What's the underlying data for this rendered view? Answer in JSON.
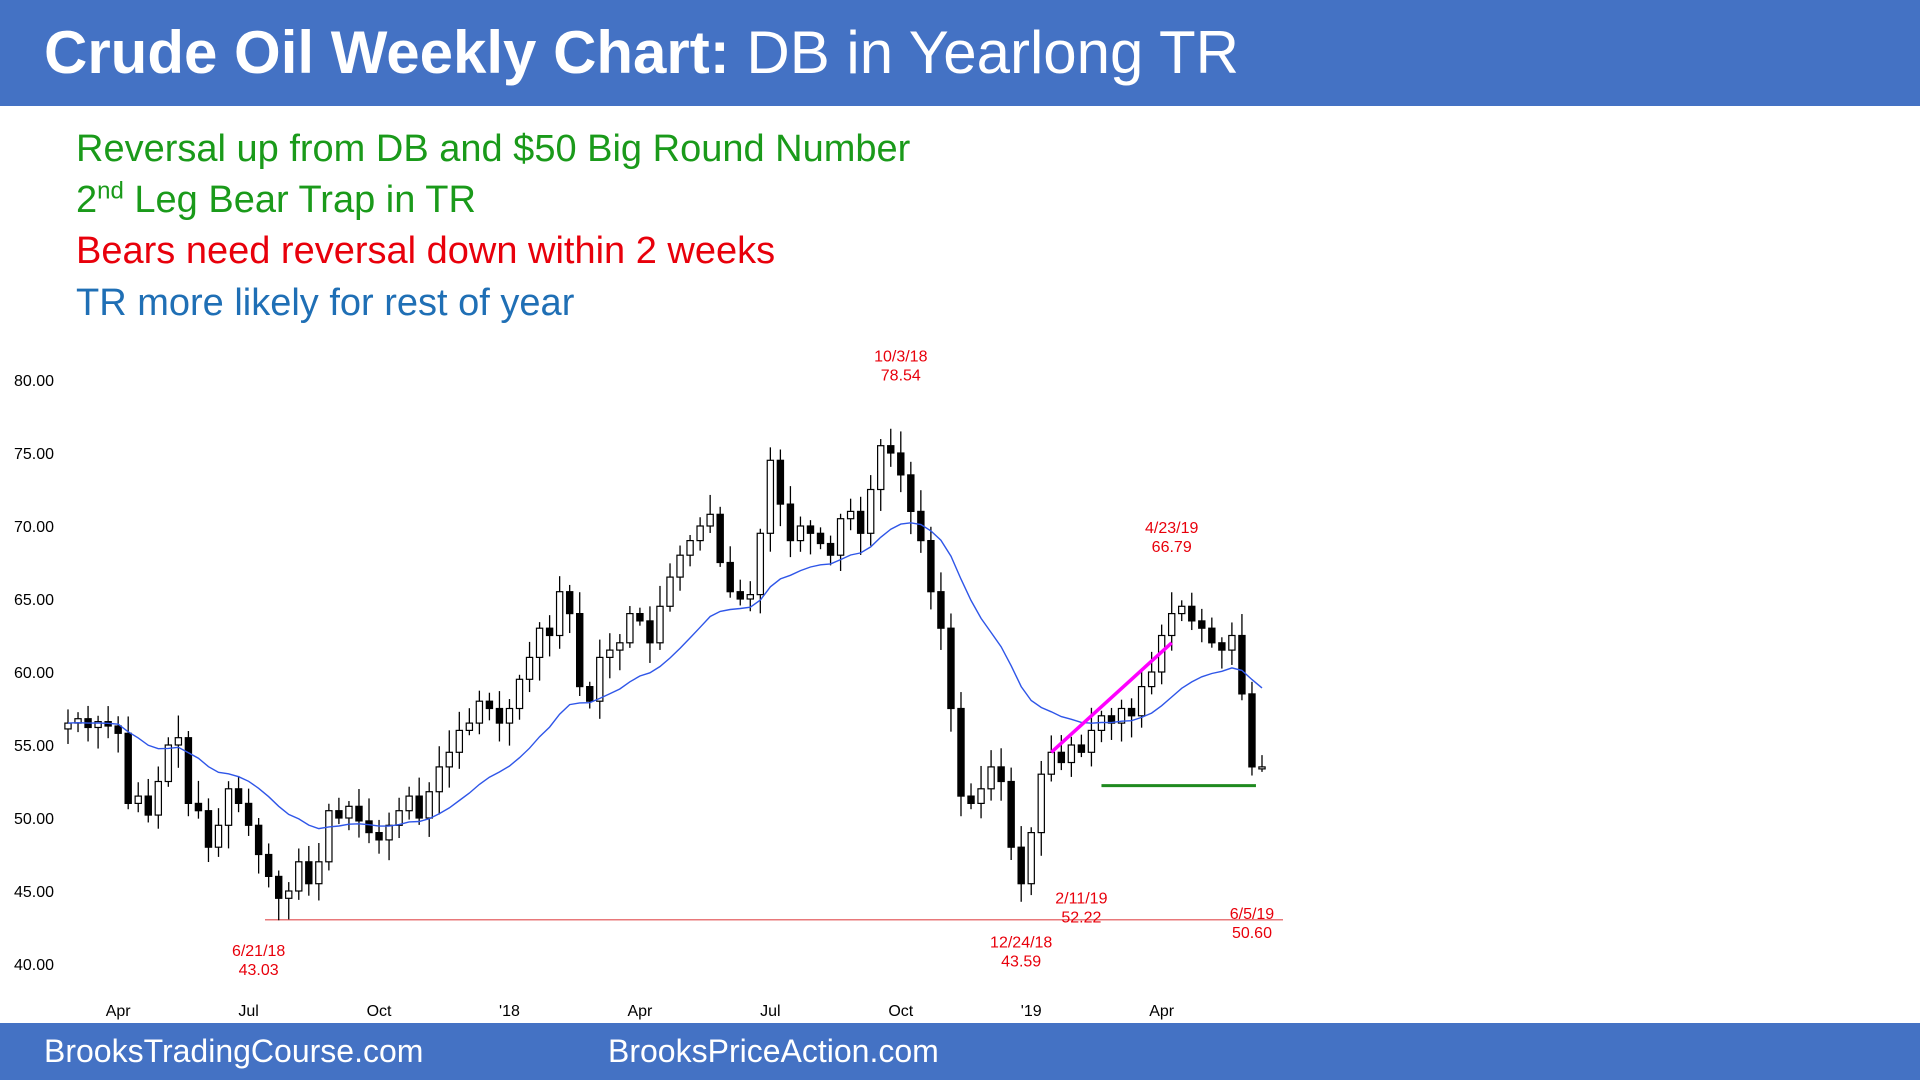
{
  "header": {
    "title_bold": "Crude Oil Weekly Chart:",
    "title_rest": " DB in Yearlong TR"
  },
  "notes": [
    {
      "text": "Reversal up from DB and $50 Big Round Number",
      "color": "#1a9a1a"
    },
    {
      "pre": "2",
      "sup": "nd",
      "post": " Leg Bear Trap in TR",
      "color": "#1a9a1a"
    },
    {
      "text": "Bears need reversal down within 2 weeks",
      "color": "#e8000b"
    },
    {
      "text": "TR more likely for rest of year",
      "color": "#1f6fb5"
    }
  ],
  "footer": {
    "left": "BrooksTradingCourse.com",
    "right": "BrooksPriceAction.com"
  },
  "colors": {
    "banner": "#4472C4",
    "ema": "#2f56e8",
    "trendline": "#ff00ff",
    "support": "#1f8a1f",
    "low_line": "#e8787a",
    "annotation": "#e8000b"
  },
  "chart_data": {
    "type": "candlestick",
    "ylim": [
      40,
      80
    ],
    "yticks": [
      "80.00",
      "75.00",
      "70.00",
      "65.00",
      "60.00",
      "55.00",
      "50.00",
      "45.00",
      "40.00"
    ],
    "xticks": [
      "Apr",
      "Jul",
      "Oct",
      "'18",
      "Apr",
      "Jul",
      "Oct",
      "'19",
      "Apr"
    ],
    "moving_average": "20-bar EMA",
    "annotations": [
      {
        "date": "10/3/18",
        "value": "78.54"
      },
      {
        "date": "4/23/19",
        "value": "66.79"
      },
      {
        "date": "2/11/19",
        "value": "52.22"
      },
      {
        "date": "6/5/19",
        "value": "50.60"
      },
      {
        "date": "6/21/18",
        "value": "43.03"
      },
      {
        "date": "12/24/18",
        "value": "43.59"
      }
    ],
    "horizontal_lines": [
      {
        "name": "prior low",
        "value": 43.03
      },
      {
        "name": "Feb low support",
        "value": 52.22
      }
    ],
    "trendline": {
      "from": 54.5,
      "to": 62.0
    },
    "closes": [
      56.5,
      56.8,
      56.2,
      56.6,
      56.3,
      55.8,
      51.0,
      51.5,
      50.2,
      52.5,
      55.0,
      55.5,
      51.0,
      50.5,
      48.0,
      49.5,
      52.0,
      51.0,
      49.5,
      47.5,
      46.0,
      44.5,
      45.0,
      47.0,
      45.5,
      47.0,
      50.5,
      50.0,
      50.8,
      49.8,
      49.0,
      48.5,
      49.5,
      50.5,
      51.5,
      50.0,
      51.8,
      53.5,
      54.5,
      56.0,
      56.5,
      58.0,
      57.5,
      56.5,
      57.5,
      59.5,
      61.0,
      63.0,
      62.5,
      65.5,
      64.0,
      59.0,
      58.0,
      61.0,
      61.5,
      62.0,
      64.0,
      63.5,
      62.0,
      64.5,
      66.5,
      68.0,
      69.0,
      70.0,
      70.8,
      67.5,
      65.5,
      65.0,
      65.3,
      69.5,
      74.5,
      71.5,
      69.0,
      70.0,
      69.5,
      68.8,
      68.0,
      70.5,
      71.0,
      69.5,
      72.5,
      75.5,
      75.0,
      73.5,
      71.0,
      69.0,
      65.5,
      63.0,
      57.5,
      51.5,
      51.0,
      52.0,
      53.5,
      52.5,
      48.0,
      45.5,
      49.0,
      53.0,
      54.5,
      53.8,
      55.0,
      54.5,
      56.0,
      57.0,
      56.5,
      57.5,
      57.0,
      59.0,
      60.0,
      62.5,
      64.0,
      64.5,
      63.5,
      63.0,
      62.0,
      61.5,
      62.5,
      58.5,
      53.5,
      53.5
    ]
  }
}
